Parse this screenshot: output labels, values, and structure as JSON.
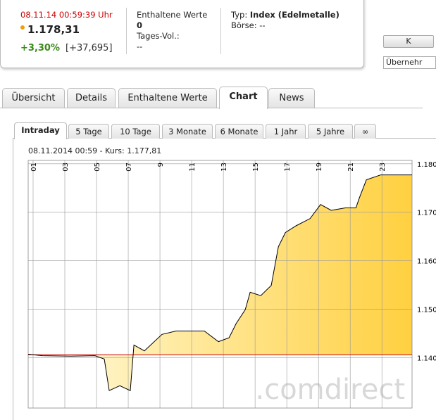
{
  "header": {
    "datetime": "08.11.14  00:59:39 Uhr",
    "price": "1.178,31",
    "change_pct": "+3,30%",
    "change_abs": "[+37,695]",
    "members_label": "Enthaltene Werte",
    "members_value": "0",
    "volume_label": "Tages-Vol.:",
    "volume_value": "--",
    "type_label": "Typ:",
    "type_value": "Index (Edelmetalle)",
    "exchange": "Börse: --"
  },
  "side": {
    "button": "K",
    "select": "Übernehr"
  },
  "tabs": [
    "Übersicht",
    "Details",
    "Enthaltene Werte",
    "Chart",
    "News"
  ],
  "subtabs": [
    "Intraday",
    "5 Tage",
    "10 Tage",
    "3 Monate",
    "6 Monate",
    "1 Jahr",
    "5 Jahre",
    "∞"
  ],
  "caption": "08.11.2014  00:59  - Kurs: 1.177,81",
  "watermark": ".comdirect",
  "chart_data": {
    "type": "line",
    "color": "#000000",
    "reference_line": 1140.6,
    "reference_color": "#cc0000",
    "x": [
      0.69,
      1.58,
      3.36,
      4.91,
      5.49,
      5.8,
      6.47,
      7.13,
      7.36,
      8.02,
      9.13,
      10.02,
      11.8,
      12.69,
      13.36,
      13.8,
      14.38,
      14.69,
      15.36,
      16.02,
      16.47,
      16.91,
      17.58,
      18.47,
      19.13,
      19.8,
      20.69,
      21.36,
      21.58,
      22.02,
      22.91
    ],
    "values": [
      1140.7,
      1140.4,
      1140.3,
      1140.4,
      1139.7,
      1133.2,
      1134.2,
      1133.2,
      1142.6,
      1141.4,
      1144.8,
      1145.5,
      1145.5,
      1143.3,
      1144.1,
      1147.0,
      1149.9,
      1153.5,
      1152.8,
      1154.9,
      1162.9,
      1165.8,
      1167.2,
      1168.7,
      1171.6,
      1170.4,
      1170.9,
      1170.9,
      1173.0,
      1176.7,
      1177.7
    ],
    "xlim": [
      0.69,
      24.9
    ],
    "ylim": [
      1129.6,
      1180.7
    ],
    "xticks": [
      {
        "value": 1,
        "label": "01"
      },
      {
        "value": 3,
        "label": "03"
      },
      {
        "value": 5,
        "label": "05"
      },
      {
        "value": 7,
        "label": "07"
      },
      9,
      11,
      13,
      15,
      17,
      19,
      21,
      23
    ],
    "yticks": [
      {
        "value": 1140,
        "label": "1.140"
      },
      {
        "value": 1150,
        "label": "1.150"
      },
      {
        "value": 1160,
        "label": "1.160"
      },
      {
        "value": 1170,
        "label": "1.170"
      },
      {
        "value": 1180,
        "label": "1.180"
      }
    ],
    "grid": true
  }
}
